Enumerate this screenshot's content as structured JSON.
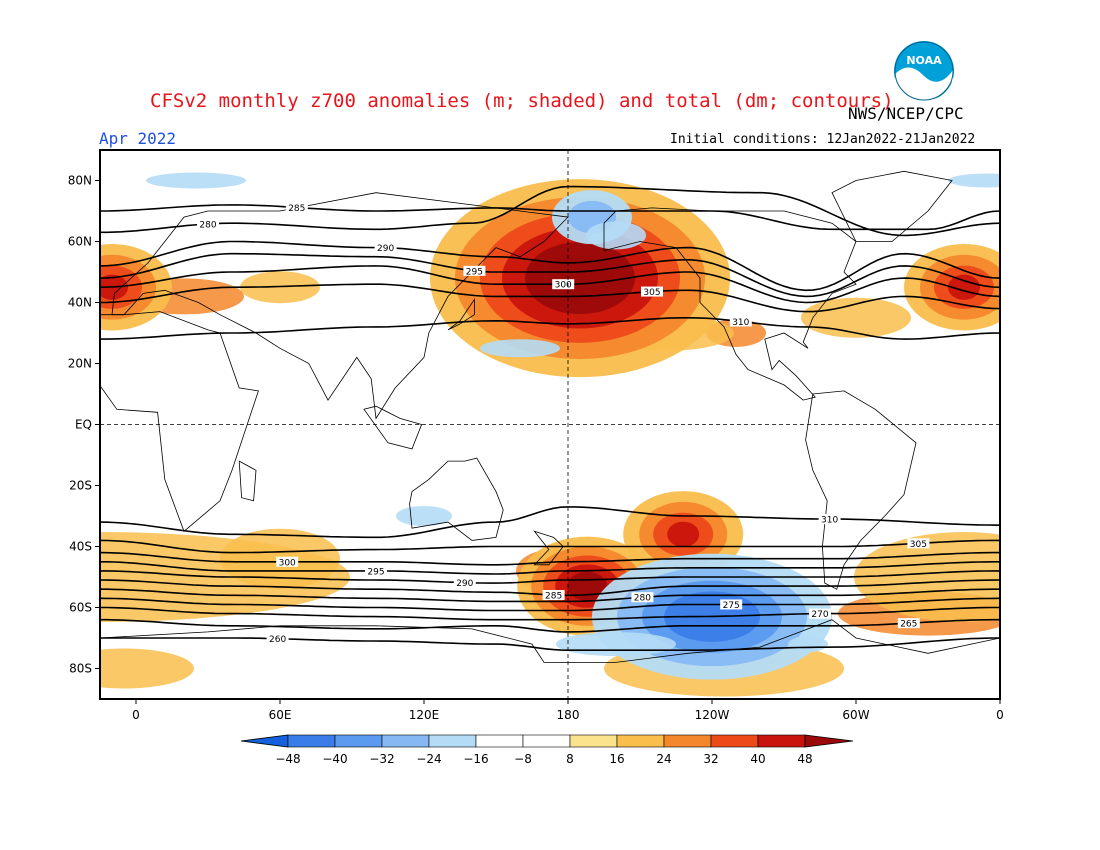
{
  "header": {
    "title": "CFSv2 monthly z700 anomalies (m; shaded) and total (dm; contours)",
    "agency": "NWS/NCEP/CPC",
    "month": "Apr 2022",
    "initial_conditions": "Initial conditions: 12Jan2022-21Jan2022",
    "logo_icon": "noaa-logo-icon",
    "logo_text": "NOAA"
  },
  "axes": {
    "lat_labels": [
      "80N",
      "60N",
      "40N",
      "20N",
      "EQ",
      "20S",
      "40S",
      "60S",
      "80S"
    ],
    "lat_values": [
      80,
      60,
      40,
      20,
      0,
      -20,
      -40,
      -60,
      -80
    ],
    "lon_labels": [
      "0",
      "60E",
      "120E",
      "180",
      "120W",
      "60W",
      "0"
    ],
    "lon_values": [
      0,
      60,
      120,
      180,
      240,
      300,
      360
    ],
    "lon_range": [
      -15,
      360
    ],
    "lat_range": [
      -90,
      90
    ]
  },
  "colorbar": {
    "labels": [
      "−48",
      "−40",
      "−32",
      "−24",
      "−16",
      "−8",
      "8",
      "16",
      "24",
      "32",
      "40",
      "48"
    ],
    "colors": [
      "#1560dd",
      "#3a7de8",
      "#5a9aef",
      "#86b9f4",
      "#b4dcf6",
      "#ffffff",
      "#fbe38e",
      "#f9be4c",
      "#f4872c",
      "#ed4a1a",
      "#c8140c",
      "#9b0a0a"
    ]
  },
  "chart_data": {
    "type": "heatmap",
    "field": "z700 anomaly (m) shaded, total height (dm) contoured",
    "anomalies": [
      {
        "lon": 185,
        "lat": 48,
        "value": 48
      },
      {
        "lon": 188,
        "lat": -53,
        "value": 40
      },
      {
        "lon": 228,
        "lat": -36,
        "value": 32
      },
      {
        "lon": 345,
        "lat": 45,
        "value": 32
      },
      {
        "lon": -10,
        "lat": 45,
        "value": 32
      },
      {
        "lon": 240,
        "lat": -63,
        "value": -40
      },
      {
        "lon": 190,
        "lat": 68,
        "value": -16
      }
    ],
    "contours": [
      {
        "value": "280",
        "lat_profile": [
          [
            -15,
            63
          ],
          [
            40,
            66
          ],
          [
            100,
            64
          ],
          [
            140,
            66
          ],
          [
            180,
            78
          ],
          [
            260,
            76
          ],
          [
            320,
            62
          ],
          [
            360,
            66
          ]
        ]
      },
      {
        "value": "285",
        "lat_profile": [
          [
            -15,
            70
          ],
          [
            40,
            72
          ],
          [
            100,
            70
          ],
          [
            150,
            71
          ],
          [
            180,
            70
          ],
          [
            240,
            70
          ],
          [
            290,
            64
          ],
          [
            330,
            64
          ],
          [
            360,
            70
          ]
        ]
      },
      {
        "value": "290",
        "lat_profile": [
          [
            -15,
            52
          ],
          [
            40,
            60
          ],
          [
            100,
            58
          ],
          [
            150,
            55
          ],
          [
            180,
            53
          ],
          [
            230,
            58
          ],
          [
            280,
            44
          ],
          [
            320,
            56
          ],
          [
            360,
            48
          ]
        ]
      },
      {
        "value": "295",
        "lat_profile": [
          [
            -15,
            48
          ],
          [
            40,
            56
          ],
          [
            100,
            55
          ],
          [
            150,
            50
          ],
          [
            180,
            50
          ],
          [
            230,
            54
          ],
          [
            280,
            42
          ],
          [
            320,
            52
          ],
          [
            360,
            45
          ]
        ]
      },
      {
        "value": "300",
        "lat_profile": [
          [
            -15,
            45
          ],
          [
            40,
            50
          ],
          [
            100,
            52
          ],
          [
            150,
            46
          ],
          [
            180,
            46
          ],
          [
            230,
            50
          ],
          [
            280,
            40
          ],
          [
            320,
            48
          ],
          [
            360,
            42
          ]
        ]
      },
      {
        "value": "305",
        "lat_profile": [
          [
            -15,
            40
          ],
          [
            40,
            45
          ],
          [
            100,
            46
          ],
          [
            150,
            42
          ],
          [
            180,
            42
          ],
          [
            230,
            44
          ],
          [
            280,
            37
          ],
          [
            320,
            42
          ],
          [
            360,
            38
          ]
        ]
      },
      {
        "value": "310",
        "lat_profile": [
          [
            -15,
            28
          ],
          [
            40,
            30
          ],
          [
            100,
            32
          ],
          [
            150,
            34
          ],
          [
            180,
            33
          ],
          [
            230,
            35
          ],
          [
            280,
            32
          ],
          [
            320,
            28
          ],
          [
            360,
            30
          ]
        ]
      },
      {
        "value": "310",
        "lat_profile": [
          [
            -15,
            -32
          ],
          [
            40,
            -36
          ],
          [
            100,
            -37
          ],
          [
            150,
            -32
          ],
          [
            180,
            -27
          ],
          [
            230,
            -30
          ],
          [
            290,
            -31
          ],
          [
            360,
            -33
          ]
        ]
      },
      {
        "value": "305",
        "lat_profile": [
          [
            -15,
            -38
          ],
          [
            40,
            -42
          ],
          [
            100,
            -41
          ],
          [
            150,
            -40
          ],
          [
            180,
            -40
          ],
          [
            230,
            -40
          ],
          [
            290,
            -40
          ],
          [
            360,
            -38
          ]
        ]
      },
      {
        "value": "300",
        "lat_profile": [
          [
            -15,
            -42
          ],
          [
            40,
            -45
          ],
          [
            100,
            -45
          ],
          [
            150,
            -46
          ],
          [
            180,
            -45
          ],
          [
            230,
            -44
          ],
          [
            290,
            -44
          ],
          [
            360,
            -42
          ]
        ]
      },
      {
        "value": "295",
        "lat_profile": [
          [
            -15,
            -45
          ],
          [
            40,
            -48
          ],
          [
            100,
            -48
          ],
          [
            150,
            -49
          ],
          [
            180,
            -48
          ],
          [
            230,
            -47
          ],
          [
            290,
            -47
          ],
          [
            360,
            -45
          ]
        ]
      },
      {
        "value": "290",
        "lat_profile": [
          [
            -15,
            -48
          ],
          [
            40,
            -50
          ],
          [
            100,
            -51
          ],
          [
            150,
            -52
          ],
          [
            180,
            -51
          ],
          [
            230,
            -50
          ],
          [
            290,
            -50
          ],
          [
            360,
            -48
          ]
        ]
      },
      {
        "value": "285",
        "lat_profile": [
          [
            -15,
            -51
          ],
          [
            40,
            -53
          ],
          [
            100,
            -54
          ],
          [
            150,
            -55
          ],
          [
            180,
            -56
          ],
          [
            230,
            -53
          ],
          [
            290,
            -53
          ],
          [
            360,
            -51
          ]
        ]
      },
      {
        "value": "280",
        "lat_profile": [
          [
            -15,
            -54
          ],
          [
            40,
            -56
          ],
          [
            100,
            -57
          ],
          [
            150,
            -58
          ],
          [
            180,
            -58
          ],
          [
            230,
            -56
          ],
          [
            290,
            -56
          ],
          [
            360,
            -54
          ]
        ]
      },
      {
        "value": "275",
        "lat_profile": [
          [
            -15,
            -57
          ],
          [
            40,
            -59
          ],
          [
            100,
            -60
          ],
          [
            150,
            -61
          ],
          [
            180,
            -61
          ],
          [
            230,
            -59
          ],
          [
            290,
            -59
          ],
          [
            360,
            -57
          ]
        ]
      },
      {
        "value": "270",
        "lat_profile": [
          [
            -15,
            -60
          ],
          [
            40,
            -62
          ],
          [
            100,
            -63
          ],
          [
            150,
            -64
          ],
          [
            180,
            -64
          ],
          [
            230,
            -63
          ],
          [
            290,
            -62
          ],
          [
            360,
            -60
          ]
        ]
      },
      {
        "value": "265",
        "lat_profile": [
          [
            -15,
            -64
          ],
          [
            40,
            -66
          ],
          [
            100,
            -67
          ],
          [
            150,
            -66
          ],
          [
            180,
            -68
          ],
          [
            230,
            -66
          ],
          [
            290,
            -66
          ],
          [
            360,
            -64
          ]
        ]
      },
      {
        "value": "260",
        "lat_profile": [
          [
            -15,
            -70
          ],
          [
            40,
            -70
          ],
          [
            100,
            -71
          ],
          [
            150,
            -72
          ],
          [
            180,
            -74
          ],
          [
            230,
            -74
          ],
          [
            290,
            -73
          ],
          [
            360,
            -70
          ]
        ]
      }
    ]
  }
}
